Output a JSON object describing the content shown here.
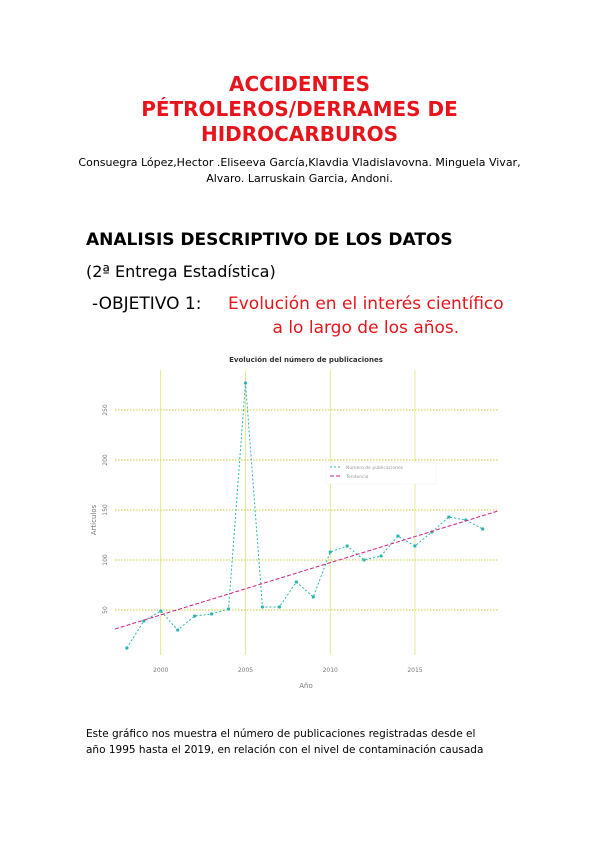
{
  "header": {
    "title_lines": [
      "ACCIDENTES",
      "PÉTROLEROS/DERRAMES DE",
      "HIDROCARBUROS"
    ],
    "author_lines": [
      "Consuegra López,Hector .Eliseeva García,Klavdia Vladislavovna. Minguela Vivar,",
      "Alvaro. Larruskain Garcia, Andoni."
    ]
  },
  "section": {
    "heading": "ANALISIS DESCRIPTIVO DE LOS DATOS",
    "subheading": "(2ª Entrega Estadística)",
    "objective_label": "-OBJETIVO 1:",
    "objective_lines": [
      "Evolución en el interés científico",
      "a lo largo de los años."
    ]
  },
  "chart_data": {
    "type": "line",
    "title": "Evolución del número de publicaciones",
    "x_label": "Año",
    "y_label": "Artículos",
    "series": [
      {
        "name": "Número de publicaciones",
        "color": "#2bb5b0",
        "x": [
          1998,
          1999,
          2000,
          2001,
          2002,
          2003,
          2004,
          2005,
          2006,
          2007,
          2008,
          2009,
          2010,
          2011,
          2012,
          2013,
          2014,
          2015,
          2016,
          2017,
          2018,
          2019
        ],
        "values": [
          12,
          39,
          49,
          30,
          44,
          46,
          51,
          277,
          53,
          53,
          78,
          63,
          108,
          114,
          100,
          104,
          124,
          114,
          128,
          143,
          140,
          131
        ]
      },
      {
        "name": "Tendencia",
        "color": "#cc1f8a",
        "x": [
          1997.3,
          2019.9
        ],
        "values": [
          31,
          149
        ]
      }
    ],
    "xlim": [
      1997.3,
      2019.9
    ],
    "xticks": [
      2000,
      2005,
      2010,
      2015
    ],
    "ylim": [
      5,
      290
    ],
    "yticks": [
      50,
      100,
      150,
      200,
      250
    ],
    "grid": true,
    "legend": "upper right"
  },
  "body": {
    "lines": [
      "Este gráfico nos muestra el número de publicaciones registradas desde el",
      "año 1995 hasta el 2019, en relación con el nivel de contaminación causada"
    ]
  }
}
